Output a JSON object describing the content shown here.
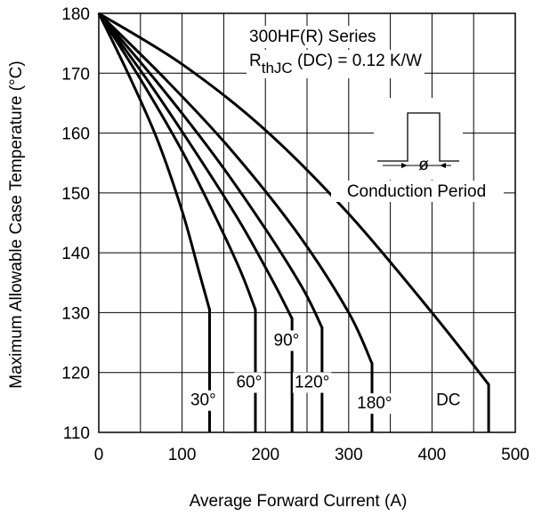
{
  "chart_data": {
    "type": "line",
    "title_line1": "300HF(R) Series",
    "title_line2_prefix": "R",
    "title_line2_sub": "thJC",
    "title_line2_suffix": " (DC) = 0.12 K/W",
    "xlabel": "Average Forward Current (A)",
    "ylabel": "Maximum Allowable Case Temperature (°C)",
    "xlim": [
      0,
      500
    ],
    "ylim": [
      110,
      180
    ],
    "xticks": [
      0,
      100,
      200,
      300,
      400,
      500
    ],
    "yticks": [
      110,
      120,
      130,
      140,
      150,
      160,
      170,
      180
    ],
    "xtick_labels": [
      "0",
      "100",
      "200",
      "300",
      "400",
      "500"
    ],
    "ytick_labels": [
      "110",
      "120",
      "130",
      "140",
      "150",
      "160",
      "170",
      "180"
    ],
    "grid_x": [
      0,
      50,
      100,
      150,
      200,
      250,
      300,
      350,
      400,
      450,
      500
    ],
    "grid_y": [
      110,
      120,
      130,
      140,
      150,
      160,
      170,
      180
    ],
    "grid": true,
    "inset_label": "Conduction Period",
    "inset_symbol": "ø",
    "series": [
      {
        "name": "30°",
        "x": [
          0,
          35,
          70,
          100,
          120,
          133
        ],
        "y": [
          180,
          170,
          159,
          147,
          137,
          130.5
        ],
        "end_x": 133,
        "end_y": 130.5
      },
      {
        "name": "60°",
        "x": [
          0,
          50,
          100,
          140,
          170,
          188
        ],
        "y": [
          180,
          169,
          157,
          146,
          137,
          130.5
        ],
        "end_x": 188,
        "end_y": 130.5
      },
      {
        "name": "90°",
        "x": [
          0,
          60,
          120,
          170,
          210,
          232
        ],
        "y": [
          180,
          168.5,
          156,
          145,
          135,
          129
        ],
        "end_x": 232,
        "end_y": 129
      },
      {
        "name": "120°",
        "x": [
          0,
          70,
          140,
          200,
          245,
          268
        ],
        "y": [
          180,
          168.5,
          156,
          144,
          134,
          127.5
        ],
        "end_x": 268,
        "end_y": 127.5
      },
      {
        "name": "180°",
        "x": [
          0,
          80,
          160,
          240,
          300,
          328
        ],
        "y": [
          180,
          169,
          157,
          143,
          130,
          121.5
        ],
        "end_x": 328,
        "end_y": 121.5
      },
      {
        "name": "DC",
        "x": [
          0,
          100,
          200,
          300,
          400,
          468
        ],
        "y": [
          180,
          171.5,
          160.5,
          146.5,
          130,
          118
        ],
        "end_x": 468,
        "end_y": 118
      }
    ],
    "series_labels": [
      {
        "text": "30°",
        "x": 110,
        "y": 114.5
      },
      {
        "text": "60°",
        "x": 165,
        "y": 117.5
      },
      {
        "text": "90°",
        "x": 210,
        "y": 124.5
      },
      {
        "text": "120°",
        "x": 235,
        "y": 117.5
      },
      {
        "text": "180°",
        "x": 310,
        "y": 114
      },
      {
        "text": "DC",
        "x": 405,
        "y": 114.5
      }
    ]
  }
}
